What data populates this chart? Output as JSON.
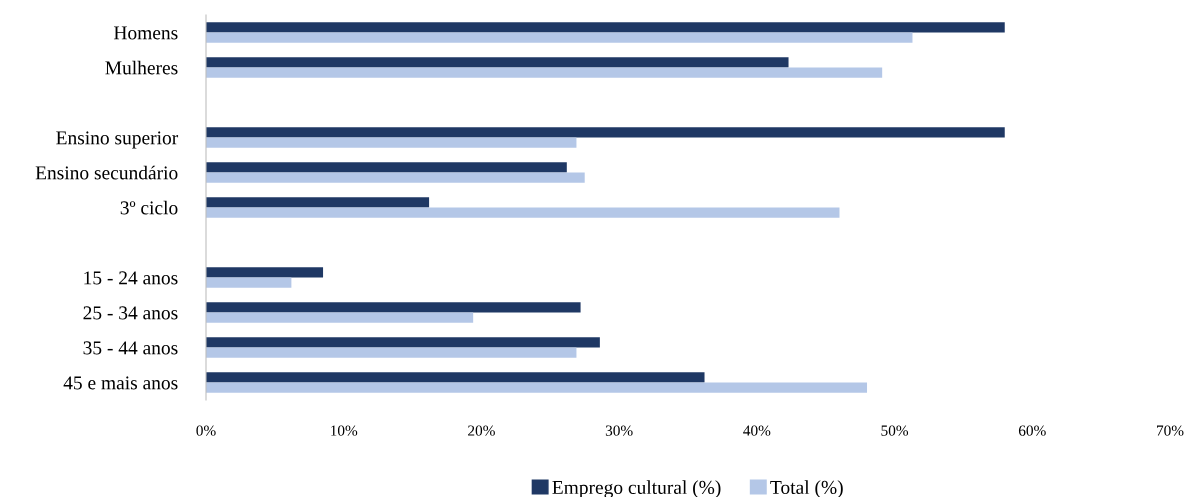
{
  "chart_data": {
    "type": "bar",
    "orientation": "horizontal",
    "categories": [
      "Homens",
      "Mulheres",
      null,
      "Ensino superior",
      "Ensino secundário",
      "3º ciclo",
      null,
      "15 - 24 anos",
      "25 - 34 anos",
      "35 - 44 anos",
      "45 e mais anos"
    ],
    "series": [
      {
        "name": "Emprego cultural (%)",
        "color": "#1f3864",
        "values": [
          58.0,
          42.3,
          null,
          58.0,
          26.2,
          16.2,
          null,
          8.5,
          27.2,
          28.6,
          36.2
        ]
      },
      {
        "name": "Total (%)",
        "color": "#b4c7e7",
        "values": [
          51.3,
          49.1,
          null,
          26.9,
          27.5,
          46.0,
          null,
          6.2,
          19.4,
          26.9,
          48.0
        ]
      }
    ],
    "xlim": [
      0,
      70
    ],
    "xticks": [
      {
        "value": 0,
        "label": "0%"
      },
      {
        "value": 10,
        "label": "10%"
      },
      {
        "value": 20,
        "label": "20%"
      },
      {
        "value": 30,
        "label": "30%"
      },
      {
        "value": 40,
        "label": "40%"
      },
      {
        "value": 50,
        "label": "50%"
      },
      {
        "value": 60,
        "label": "60%"
      },
      {
        "value": 70,
        "label": "70%"
      }
    ],
    "grid": false,
    "legend": "bottom"
  }
}
